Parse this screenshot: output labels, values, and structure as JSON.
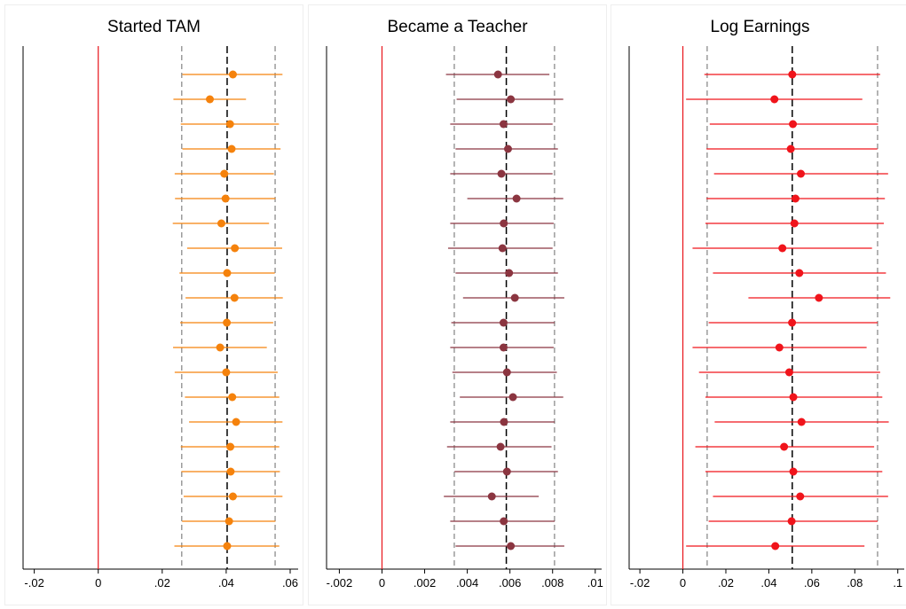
{
  "colors": {
    "zero_line": "#e8151b",
    "axis": "#000000",
    "mean_line": "#000000",
    "ci_line": "#8c8c8c"
  },
  "chart_data": [
    {
      "type": "scatter",
      "title": "Started TAM",
      "color": "#f5820c",
      "xlim": [
        -0.0235,
        0.0625
      ],
      "xticks": [
        -0.02,
        0,
        0.02,
        0.04,
        0.06
      ],
      "xtick_labels": [
        "-.02",
        "0",
        ".02",
        ".04",
        ".06"
      ],
      "reference_lines": {
        "zero": 0,
        "mean": 0.0403,
        "ci_low": 0.0261,
        "ci_high": 0.0553
      },
      "points": [
        0.0421,
        0.0349,
        0.0412,
        0.0417,
        0.0394,
        0.0398,
        0.0385,
        0.0427,
        0.0403,
        0.0426,
        0.0402,
        0.0381,
        0.04,
        0.0419,
        0.0431,
        0.0413,
        0.0414,
        0.0421,
        0.0409,
        0.0403
      ],
      "ci_lower": [
        0.0263,
        0.0235,
        0.0258,
        0.0263,
        0.0239,
        0.024,
        0.0233,
        0.0278,
        0.0254,
        0.0273,
        0.0256,
        0.0234,
        0.0239,
        0.0271,
        0.0284,
        0.0258,
        0.026,
        0.0267,
        0.0262,
        0.0238
      ],
      "ci_upper": [
        0.0576,
        0.0462,
        0.0565,
        0.057,
        0.0549,
        0.0554,
        0.0534,
        0.0575,
        0.0552,
        0.0577,
        0.0547,
        0.0527,
        0.0561,
        0.0566,
        0.0576,
        0.0566,
        0.0568,
        0.0576,
        0.0554,
        0.0566
      ]
    },
    {
      "type": "scatter",
      "title": "Became a Teacher",
      "color": "#8b3540",
      "xlim": [
        -0.0026,
        0.0103
      ],
      "xticks": [
        -0.002,
        0,
        0.002,
        0.004,
        0.006,
        0.008,
        0.01
      ],
      "xtick_labels": [
        "-.002",
        "0",
        ".002",
        ".004",
        ".006",
        ".008",
        ".01"
      ],
      "reference_lines": {
        "zero": 0,
        "mean": 0.00583,
        "ci_low": 0.00339,
        "ci_high": 0.00809
      },
      "points": [
        0.00544,
        0.00604,
        0.0057,
        0.00591,
        0.0056,
        0.00631,
        0.00571,
        0.00565,
        0.00596,
        0.00623,
        0.0057,
        0.0057,
        0.00586,
        0.00614,
        0.00572,
        0.00556,
        0.00586,
        0.00515,
        0.00571,
        0.00604
      ],
      "ci_lower": [
        0.003,
        0.0035,
        0.0032,
        0.00345,
        0.0032,
        0.004,
        0.0032,
        0.0031,
        0.00345,
        0.0038,
        0.00325,
        0.0032,
        0.0033,
        0.00365,
        0.0032,
        0.00305,
        0.0034,
        0.0029,
        0.0032,
        0.00345
      ],
      "ci_upper": [
        0.00785,
        0.0085,
        0.008,
        0.00825,
        0.008,
        0.0085,
        0.00805,
        0.008,
        0.00825,
        0.00855,
        0.0081,
        0.00805,
        0.0082,
        0.0085,
        0.0081,
        0.00795,
        0.00825,
        0.00735,
        0.0081,
        0.00855
      ]
    },
    {
      "type": "scatter",
      "title": "Log Earnings",
      "color": "#f0141b",
      "xlim": [
        -0.025,
        0.103
      ],
      "xticks": [
        -0.02,
        0,
        0.02,
        0.04,
        0.06,
        0.08,
        0.1
      ],
      "xtick_labels": [
        "-.02",
        "0",
        ".02",
        ".04",
        ".06",
        ".08",
        ".1"
      ],
      "reference_lines": {
        "zero": 0,
        "mean": 0.0509,
        "ci_low": 0.0113,
        "ci_high": 0.0906
      },
      "points": [
        0.0509,
        0.0426,
        0.0512,
        0.0502,
        0.0549,
        0.0524,
        0.0519,
        0.0463,
        0.0542,
        0.0633,
        0.0508,
        0.0449,
        0.0495,
        0.0514,
        0.0552,
        0.0471,
        0.0514,
        0.0546,
        0.0506,
        0.043
      ],
      "ci_lower": [
        0.01,
        0.0015,
        0.0125,
        0.011,
        0.0145,
        0.011,
        0.0105,
        0.0045,
        0.014,
        0.0305,
        0.012,
        0.0045,
        0.0075,
        0.0105,
        0.0148,
        0.0058,
        0.0105,
        0.014,
        0.012,
        0.0015
      ],
      "ci_upper": [
        0.0918,
        0.0835,
        0.0908,
        0.0905,
        0.0955,
        0.094,
        0.0935,
        0.088,
        0.0945,
        0.0965,
        0.0906,
        0.0855,
        0.0918,
        0.0928,
        0.0958,
        0.089,
        0.0928,
        0.0955,
        0.0906,
        0.0845
      ]
    }
  ]
}
